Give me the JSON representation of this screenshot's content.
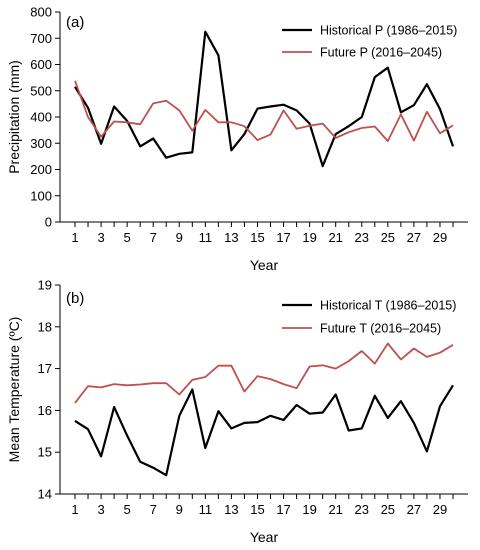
{
  "colors": {
    "historical": "#000000",
    "future": "#c0504d",
    "axis": "#000000"
  },
  "chart_data": [
    {
      "type": "line",
      "panel_label": "(a)",
      "xlabel": "Year",
      "ylabel": "Precipitation (mm)",
      "xlim": [
        1,
        30
      ],
      "ylim": [
        0,
        800
      ],
      "yticks": [
        0,
        100,
        200,
        300,
        400,
        500,
        600,
        700,
        800
      ],
      "xticks": [
        1,
        3,
        5,
        7,
        9,
        11,
        13,
        15,
        17,
        19,
        21,
        23,
        25,
        27,
        29
      ],
      "legend_position": "top-right",
      "grid": false,
      "x": [
        1,
        2,
        3,
        4,
        5,
        6,
        7,
        8,
        9,
        10,
        11,
        12,
        13,
        14,
        15,
        16,
        17,
        18,
        19,
        20,
        21,
        22,
        23,
        24,
        25,
        26,
        27,
        28,
        29,
        30
      ],
      "series": [
        {
          "name": "Historical P (1986–2015)",
          "color_key": "historical",
          "values": [
            515,
            435,
            298,
            440,
            385,
            288,
            318,
            245,
            260,
            265,
            725,
            635,
            273,
            335,
            432,
            440,
            447,
            425,
            375,
            213,
            335,
            365,
            400,
            552,
            588,
            418,
            445,
            525,
            430,
            288
          ]
        },
        {
          "name": "Future P (2016–2045)",
          "color_key": "future",
          "values": [
            538,
            400,
            325,
            383,
            380,
            372,
            452,
            462,
            425,
            348,
            427,
            380,
            380,
            365,
            312,
            333,
            425,
            355,
            367,
            375,
            320,
            342,
            358,
            364,
            308,
            410,
            310,
            420,
            338,
            368
          ]
        }
      ]
    },
    {
      "type": "line",
      "panel_label": "(b)",
      "xlabel": "Year",
      "ylabel": "Mean Temperature (ºC)",
      "xlim": [
        1,
        30
      ],
      "ylim": [
        14,
        19
      ],
      "yticks": [
        14,
        15,
        16,
        17,
        18,
        19
      ],
      "xticks": [
        1,
        3,
        5,
        7,
        9,
        11,
        13,
        15,
        17,
        19,
        21,
        23,
        25,
        27,
        29
      ],
      "legend_position": "top-right",
      "grid": false,
      "x": [
        1,
        2,
        3,
        4,
        5,
        6,
        7,
        8,
        9,
        10,
        11,
        12,
        13,
        14,
        15,
        16,
        17,
        18,
        19,
        20,
        21,
        22,
        23,
        24,
        25,
        26,
        27,
        28,
        29,
        30
      ],
      "series": [
        {
          "name": "Historical T (1986–2015)",
          "color_key": "historical",
          "values": [
            15.75,
            15.55,
            14.9,
            16.08,
            15.4,
            14.77,
            14.63,
            14.45,
            15.87,
            16.5,
            15.1,
            15.98,
            15.57,
            15.7,
            15.72,
            15.87,
            15.77,
            16.13,
            15.92,
            15.95,
            16.38,
            15.52,
            15.57,
            16.35,
            15.82,
            16.22,
            15.7,
            15.02,
            16.1,
            16.6
          ]
        },
        {
          "name": "Future T (2016–2045)",
          "color_key": "future",
          "values": [
            16.18,
            16.58,
            16.55,
            16.63,
            16.6,
            16.62,
            16.65,
            16.65,
            16.38,
            16.73,
            16.8,
            17.07,
            17.07,
            16.45,
            16.82,
            16.75,
            16.63,
            16.53,
            17.05,
            17.08,
            17.0,
            17.18,
            17.42,
            17.12,
            17.6,
            17.22,
            17.48,
            17.28,
            17.38,
            17.57
          ]
        }
      ]
    }
  ]
}
